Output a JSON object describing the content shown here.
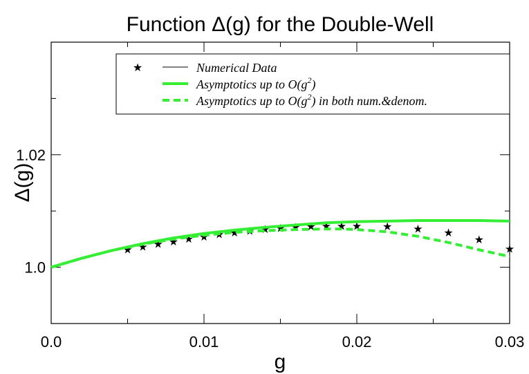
{
  "chart_data": {
    "type": "line",
    "title_prefix": "Function ",
    "title_symbol": "Δ",
    "title_suffix": "(g) for the Double-Well",
    "xlabel": "g",
    "ylabel_symbol": "Δ",
    "ylabel_suffix": "(g)",
    "xlim": [
      0.0,
      0.03
    ],
    "ylim": [
      0.99,
      1.04
    ],
    "x_ticks": [
      {
        "value": 0.0,
        "label": "0.0"
      },
      {
        "value": 0.01,
        "label": "0.01"
      },
      {
        "value": 0.02,
        "label": "0.02"
      },
      {
        "value": 0.03,
        "label": "0.03"
      }
    ],
    "x_minor_ticks": [
      0.005,
      0.015,
      0.025
    ],
    "y_ticks": [
      {
        "value": 1.0,
        "label": "1.0"
      },
      {
        "value": 1.02,
        "label": "1.02"
      }
    ],
    "y_minor_ticks": [
      1.01,
      1.03
    ],
    "grid": false,
    "legend_placement": "top-right",
    "legend": [
      {
        "text": "Numerical Data",
        "sup": "",
        "tail": ""
      },
      {
        "text": "Asymptotics up to O(g",
        "sup": "2",
        "tail": ")"
      },
      {
        "text": "Asymptotics up to O(g",
        "sup": "2",
        "tail": ") in both num.&denom."
      }
    ],
    "colors": {
      "asymptotic": "#33ee33",
      "data": "#000000"
    },
    "series": [
      {
        "name": "Numerical Data",
        "style": "stars",
        "x": [
          0.005,
          0.006,
          0.007,
          0.008,
          0.009,
          0.01,
          0.011,
          0.012,
          0.013,
          0.014,
          0.015,
          0.016,
          0.017,
          0.018,
          0.019,
          0.02,
          0.022,
          0.024,
          0.026,
          0.028,
          0.03
        ],
        "y": [
          1.0032,
          1.0037,
          1.0042,
          1.0046,
          1.0051,
          1.0055,
          1.0059,
          1.0062,
          1.0065,
          1.0068,
          1.007,
          1.0072,
          1.0073,
          1.0074,
          1.0074,
          1.0074,
          1.0073,
          1.0069,
          1.0062,
          1.005,
          1.0033
        ]
      },
      {
        "name": "Asymptotics up to O(g^2)",
        "style": "solid",
        "x": [
          0.0,
          0.002,
          0.004,
          0.006,
          0.008,
          0.01,
          0.012,
          0.014,
          0.016,
          0.018,
          0.02,
          0.022,
          0.024,
          0.026,
          0.028,
          0.03
        ],
        "y": [
          1.0,
          1.0016,
          1.003,
          1.0042,
          1.0052,
          1.006,
          1.0066,
          1.0071,
          1.0075,
          1.0079,
          1.0081,
          1.0082,
          1.0083,
          1.0083,
          1.0083,
          1.0082
        ]
      },
      {
        "name": "Asymptotics up to O(g^2) in both num.&denom.",
        "style": "dashed",
        "x": [
          0.0,
          0.002,
          0.004,
          0.006,
          0.008,
          0.01,
          0.012,
          0.014,
          0.016,
          0.018,
          0.019,
          0.02,
          0.022,
          0.024,
          0.026,
          0.028,
          0.03
        ],
        "y": [
          1.0,
          1.0016,
          1.003,
          1.0041,
          1.005,
          1.0057,
          1.0062,
          1.0065,
          1.0067,
          1.0068,
          1.0068,
          1.0067,
          1.0063,
          1.0055,
          1.0044,
          1.0031,
          1.0019
        ]
      }
    ]
  }
}
